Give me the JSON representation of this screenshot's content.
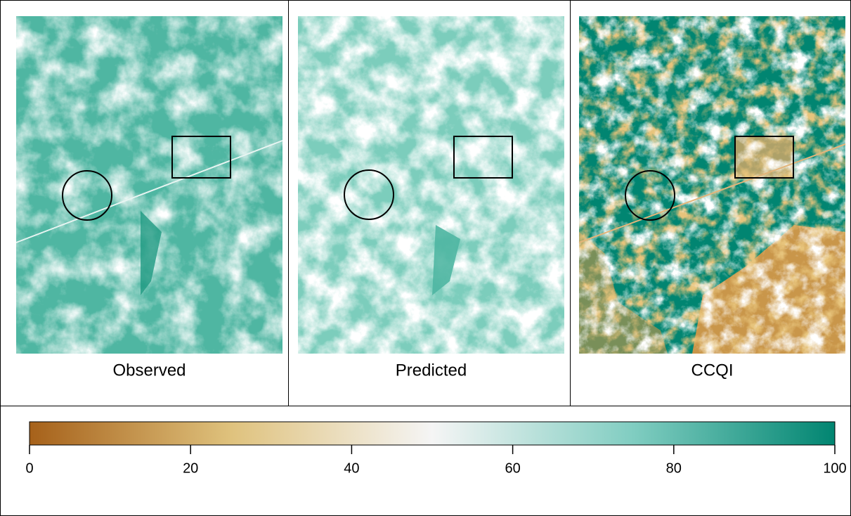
{
  "panels": [
    {
      "label": "Observed"
    },
    {
      "label": "Predicted"
    },
    {
      "label": "CCQI"
    }
  ],
  "colorbar": {
    "lim": [
      0,
      100
    ],
    "ticks": [
      0,
      20,
      40,
      60,
      80,
      100
    ],
    "colors": [
      "#a6611a",
      "#dfc27d",
      "#f5f5f5",
      "#80cdc1",
      "#018571"
    ]
  }
}
